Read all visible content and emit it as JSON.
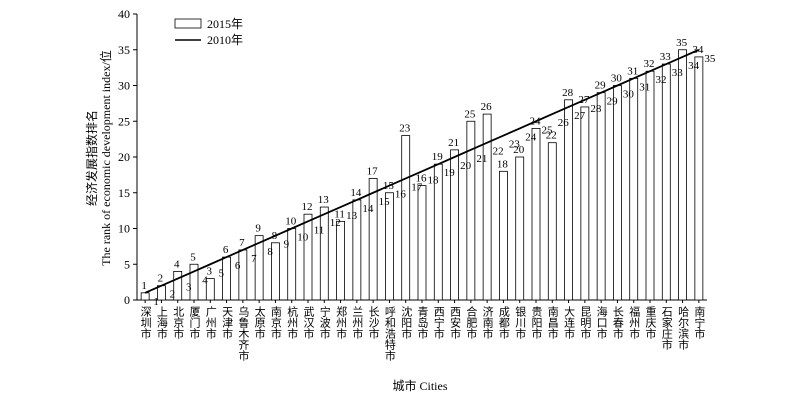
{
  "chart_data": {
    "type": "bar",
    "y_label_lines": [
      "经济发展指数排名",
      "The rank of economic development index/位"
    ],
    "x_label": "城市 Cities",
    "categories": [
      "深圳市",
      "上海市",
      "北京市",
      "厦门市",
      "广州市",
      "天津市",
      "乌鲁木齐市",
      "太原市",
      "南京市",
      "杭州市",
      "武汉市",
      "宁波市",
      "郑州市",
      "兰州市",
      "长沙市",
      "呼和浩特市",
      "沈阳市",
      "青岛市",
      "西宁市",
      "西安市",
      "合肥市",
      "济南市",
      "成都市",
      "银川市",
      "贵阳市",
      "南昌市",
      "大连市",
      "昆明市",
      "海口市",
      "长春市",
      "福州市",
      "重庆市",
      "石家庄市",
      "哈尔滨市",
      "南宁市"
    ],
    "series": [
      {
        "name": "2015年",
        "type": "bar",
        "color": "#ffffff",
        "values": [
          1,
          2,
          4,
          5,
          3,
          6,
          7,
          9,
          8,
          10,
          12,
          13,
          11,
          14,
          17,
          15,
          23,
          16,
          19,
          21,
          25,
          26,
          18,
          20,
          24,
          22,
          28,
          27,
          29,
          30,
          31,
          32,
          33,
          35,
          34
        ]
      },
      {
        "name": "2010年",
        "type": "line",
        "color": "#000000",
        "values": [
          1,
          2,
          3,
          4,
          5,
          6,
          7,
          8,
          9,
          10,
          11,
          12,
          13,
          14,
          15,
          16,
          17,
          18,
          19,
          20,
          21,
          22,
          23,
          24,
          25,
          26,
          27,
          28,
          29,
          30,
          31,
          32,
          33,
          34,
          35
        ]
      }
    ],
    "ylim": [
      0,
      40
    ],
    "yticks": [
      0,
      5,
      10,
      15,
      20,
      25,
      30,
      35,
      40
    ],
    "legend": "top-left"
  }
}
